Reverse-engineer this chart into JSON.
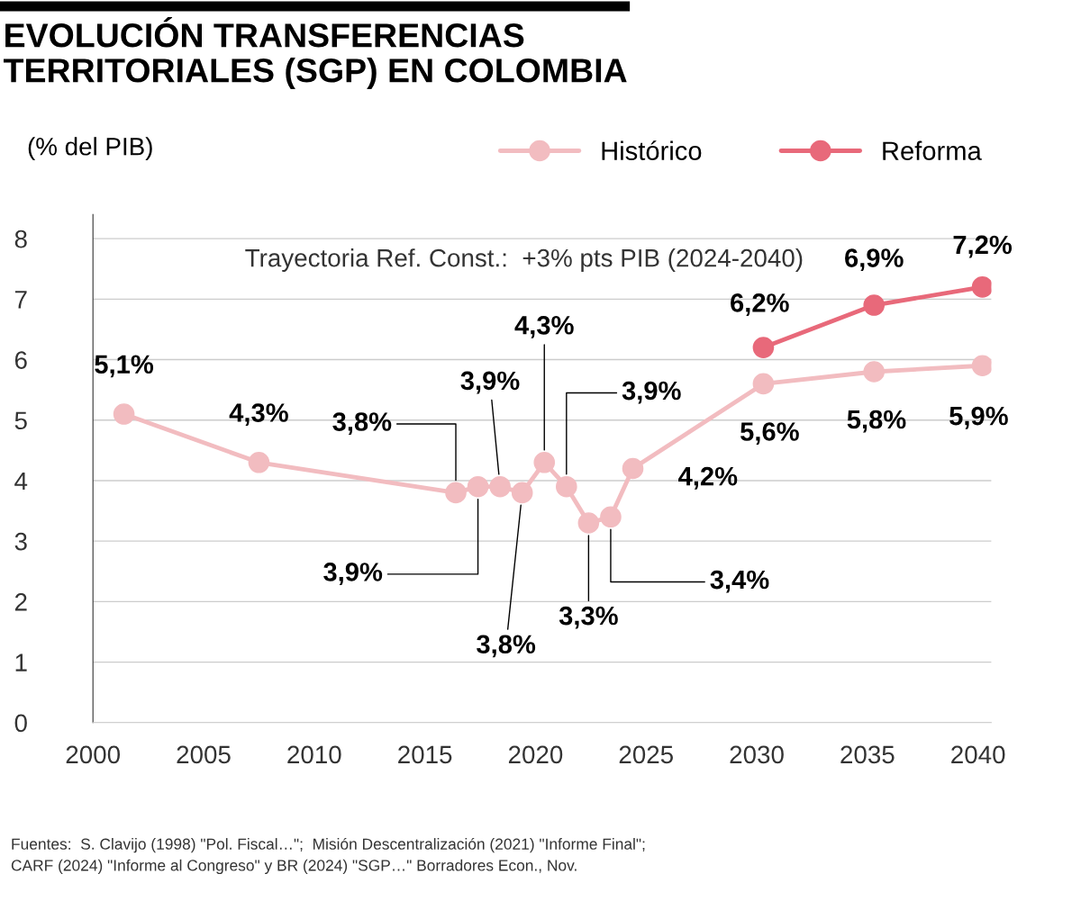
{
  "chart_data": {
    "type": "line",
    "title": "EVOLUCIÓN TRANSFERENCIAS\nTERRITORIALES (SGP) EN COLOMBIA",
    "ylabel": "(% del PIB)",
    "annotations": [
      "Trayectoria Ref. Const.:  +3% pts PIB (2024-2040)",
      "Fuentes:  S. Clavijo (1998) \"Pol. Fiscal…\";  Misión Descentralización (2021) \"Informe Final\";\nCARF (2024) \"Informe al Congreso\" y BR (2024) \"SGP…\" Borradores Econ., Nov."
    ],
    "series": [
      {
        "name": "Histórico",
        "color": "#f2bcc0",
        "x": [
          2001.4,
          2007.5,
          2016.4,
          2017.4,
          2018.4,
          2019.4,
          2020.4,
          2021.4,
          2022.4,
          2023.4,
          2024.4,
          2030.3,
          2035.3,
          2040.2
        ],
        "values": [
          5.1,
          4.3,
          3.8,
          3.9,
          3.9,
          3.8,
          4.3,
          3.9,
          3.3,
          3.4,
          4.2,
          5.6,
          5.8,
          5.9
        ],
        "value_labels": [
          "5,1%",
          "4,3%",
          "3,8%",
          "3,9%",
          "3,9%",
          "3,8%",
          "4,3%",
          "3,9%",
          "3,3%",
          "3,4%",
          "4,2%",
          "5,6%",
          "5,8%",
          "5,9%"
        ]
      },
      {
        "name": "Reforma",
        "color": "#e8697a",
        "x": [
          2030.3,
          2035.3,
          2040.2
        ],
        "values": [
          6.2,
          6.9,
          7.2
        ],
        "value_labels": [
          "6,2%",
          "6,9%",
          "7,2%"
        ]
      }
    ],
    "xlim": [
      2000,
      2040.6
    ],
    "xticks": [
      2000,
      2005,
      2010,
      2015,
      2020,
      2025,
      2030,
      2035,
      2040
    ],
    "ylim": [
      0,
      8.4
    ],
    "yticks": [
      0,
      1,
      2,
      3,
      4,
      5,
      6,
      7,
      8
    ],
    "grid": "y",
    "legend": "top right",
    "marker": "circle",
    "line_style": "solid"
  }
}
